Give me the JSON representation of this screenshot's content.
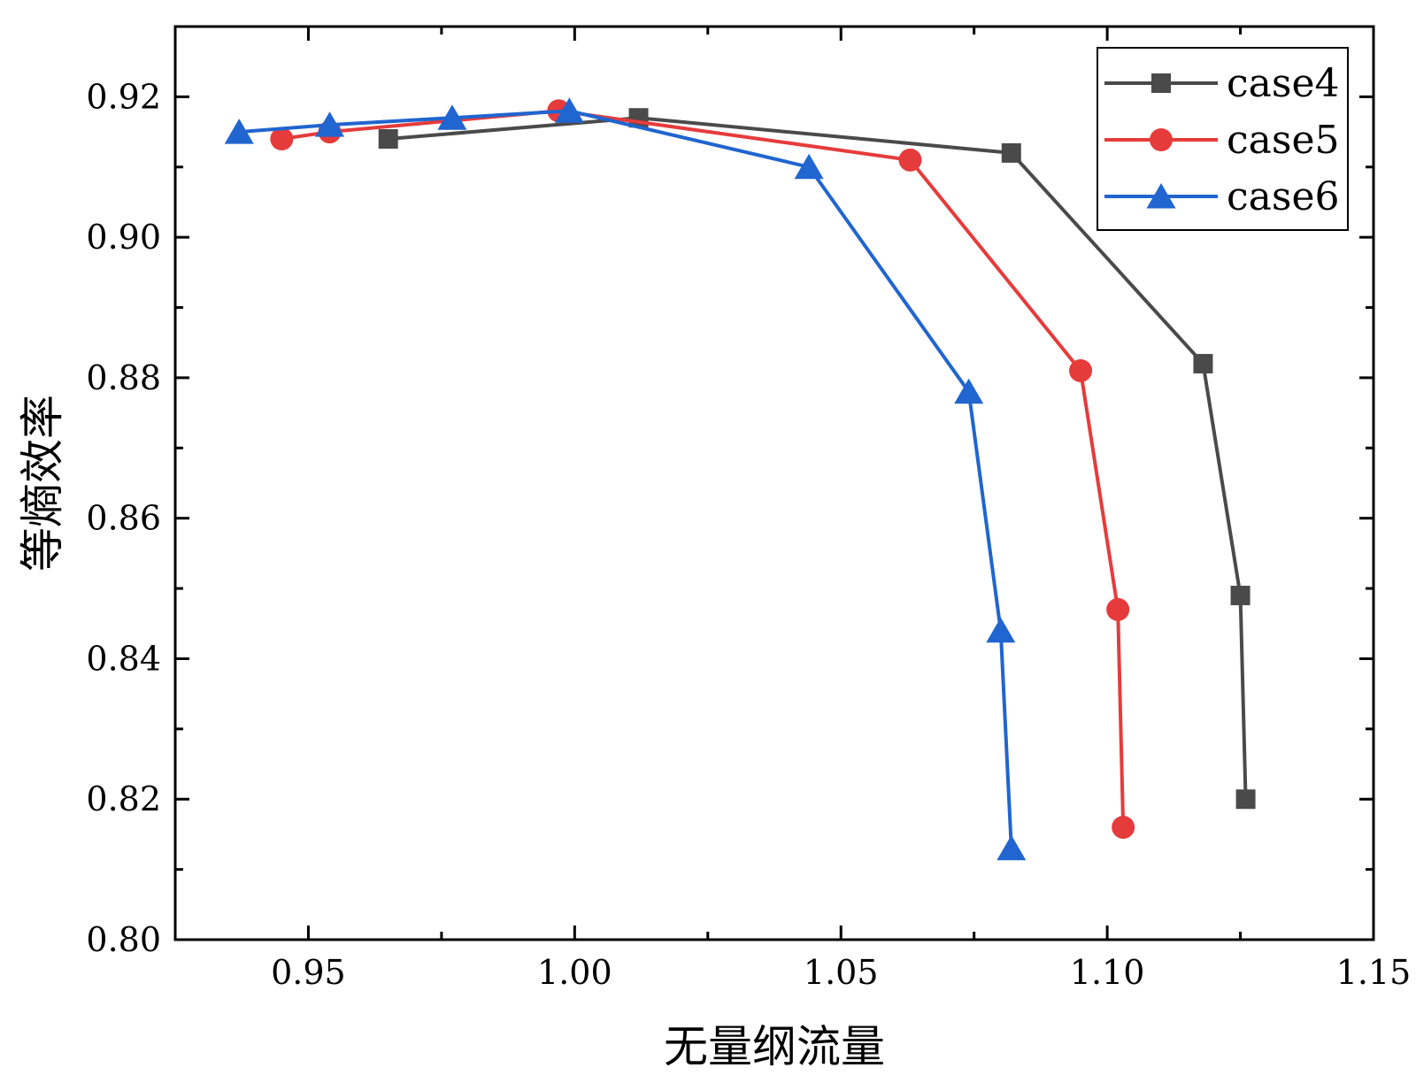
{
  "chart_data": {
    "type": "line",
    "title": "",
    "xlabel": "无量纲流量",
    "ylabel": "等熵效率",
    "xlim": [
      0.925,
      1.15
    ],
    "ylim": [
      0.8,
      0.93
    ],
    "xticks": [
      0.95,
      1.0,
      1.05,
      1.1,
      1.15
    ],
    "yticks": [
      0.8,
      0.82,
      0.84,
      0.86,
      0.88,
      0.9,
      0.92
    ],
    "xtick_labels": [
      "0.95",
      "1.00",
      "1.05",
      "1.10",
      "1.15"
    ],
    "ytick_labels": [
      "0.80",
      "0.82",
      "0.84",
      "0.86",
      "0.88",
      "0.90",
      "0.92"
    ],
    "grid": false,
    "legend_position": "top-right",
    "series": [
      {
        "name": "case4",
        "color": "#4a4a4a",
        "marker": "square",
        "x": [
          0.965,
          1.012,
          1.082,
          1.118,
          1.125,
          1.126
        ],
        "y": [
          0.914,
          0.917,
          0.912,
          0.882,
          0.849,
          0.82
        ]
      },
      {
        "name": "case5",
        "color": "#e63b3b",
        "marker": "circle",
        "x": [
          0.945,
          0.954,
          0.997,
          1.063,
          1.095,
          1.102,
          1.103
        ],
        "y": [
          0.914,
          0.915,
          0.918,
          0.911,
          0.881,
          0.847,
          0.816
        ]
      },
      {
        "name": "case6",
        "color": "#2065d0",
        "marker": "triangle",
        "x": [
          0.937,
          0.954,
          0.977,
          0.999,
          1.044,
          1.074,
          1.08,
          1.082
        ],
        "y": [
          0.915,
          0.916,
          0.917,
          0.918,
          0.91,
          0.878,
          0.844,
          0.813
        ]
      }
    ]
  }
}
